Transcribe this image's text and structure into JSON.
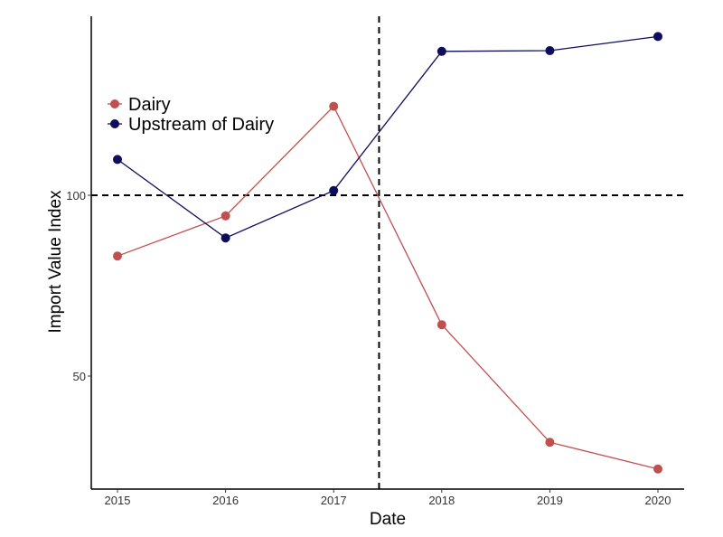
{
  "chart_data": {
    "type": "line",
    "title": "",
    "xlabel": "Date",
    "ylabel": "Import Value Index",
    "categories": [
      "2015",
      "2016",
      "2017",
      "2018",
      "2019",
      "2020"
    ],
    "y_ticks": [
      50,
      100
    ],
    "ylim": [
      20,
      145
    ],
    "grid": false,
    "legend_position": "top-left",
    "reference_lines": {
      "horizontal_y": 100,
      "vertical_x": 2017.42
    },
    "series": [
      {
        "name": "Dairy",
        "color": "#c0504d",
        "values": [
          83.2,
          94.3,
          124.6,
          64.2,
          31.7,
          24.3
        ]
      },
      {
        "name": "Upstream of Dairy",
        "color": "#0d0d5c",
        "values": [
          109.9,
          88.2,
          101.3,
          139.8,
          140.0,
          143.9
        ]
      }
    ]
  }
}
